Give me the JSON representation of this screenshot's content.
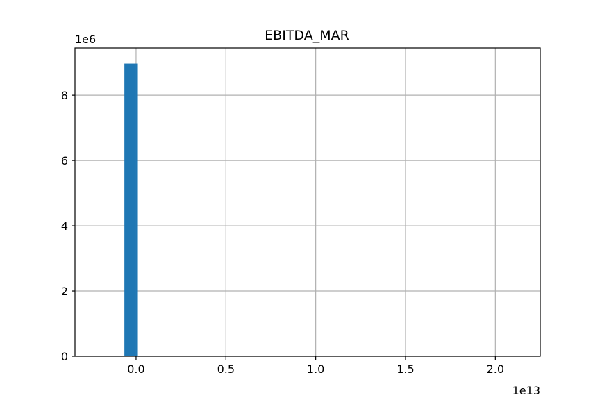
{
  "chart_data": {
    "type": "bar",
    "title": "EBITDA_MAR",
    "xlabel": "",
    "ylabel": "",
    "x_offset_label": "1e13",
    "y_offset_label": "1e6",
    "xlim": [
      -0.34,
      2.25
    ],
    "ylim": [
      0,
      9.45
    ],
    "x_ticks": [
      0.0,
      0.5,
      1.0,
      1.5,
      2.0
    ],
    "x_tick_labels": [
      "0.0",
      "0.5",
      "1.0",
      "1.5",
      "2.0"
    ],
    "y_ticks": [
      0,
      2,
      4,
      6,
      8
    ],
    "y_tick_labels": [
      "0",
      "2",
      "4",
      "6",
      "8"
    ],
    "grid": true,
    "bar_color": "#1f77b4",
    "bins": [
      {
        "x0": -0.065,
        "x1": 0.0,
        "value": 8.97
      },
      {
        "x0": 0.0,
        "x1": 0.01,
        "value": 8.97
      }
    ]
  }
}
